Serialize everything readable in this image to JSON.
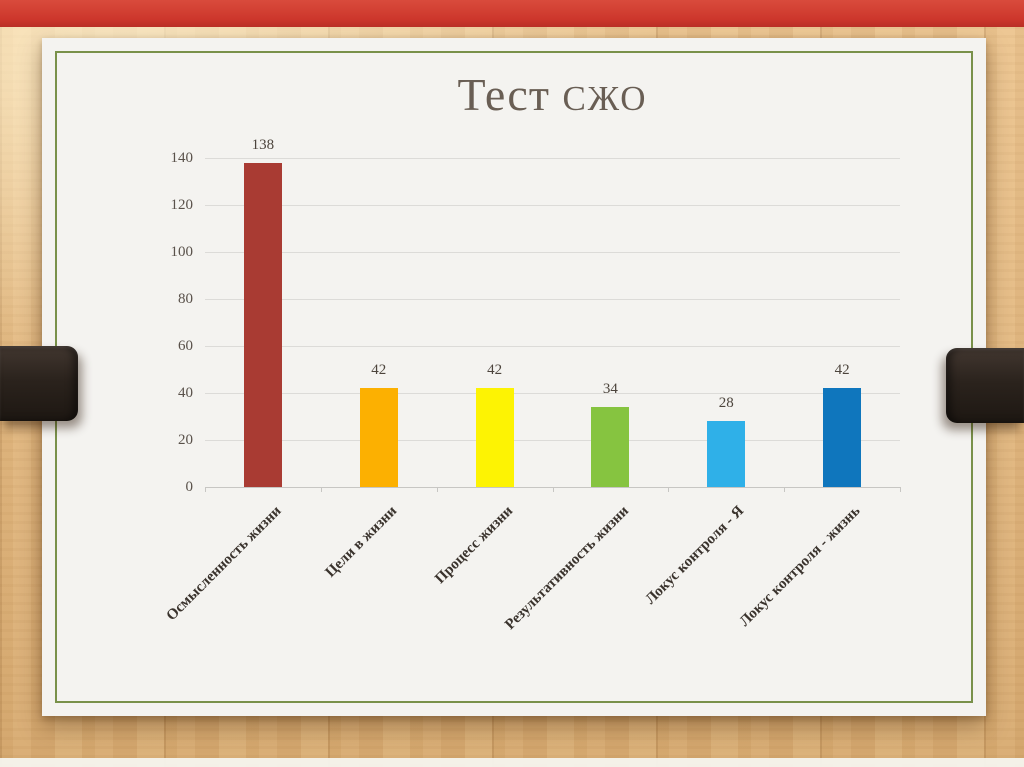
{
  "slide": {
    "title_part1": "Тест",
    "title_part2": "СЖО"
  },
  "chart_data": {
    "type": "bar",
    "title": "Тест СЖО",
    "categories": [
      "Осмысленность жизни",
      "Цели в жизни",
      "Процесс жизни",
      "Результативность жизни",
      "Локус контроля - Я",
      "Локус контроля - жизнь"
    ],
    "values": [
      138,
      42,
      42,
      34,
      28,
      42
    ],
    "data_labels": [
      138,
      42,
      42,
      34,
      28,
      42
    ],
    "bar_colors": [
      "#a93b33",
      "#fcb001",
      "#fdf303",
      "#86c440",
      "#2fb0e8",
      "#0f76bd"
    ],
    "ylim": [
      0,
      140
    ],
    "yticks": [
      0,
      20,
      40,
      60,
      80,
      100,
      120,
      140
    ],
    "grid": true,
    "legend": false,
    "xlabel": "",
    "ylabel": ""
  },
  "decor": {
    "top_strip_color": "#cd372c",
    "ribbon_color": "#2b231d",
    "frame_color": "#79914a",
    "slide_background": "#f4f3f0",
    "desk_background": "#ecc289"
  }
}
